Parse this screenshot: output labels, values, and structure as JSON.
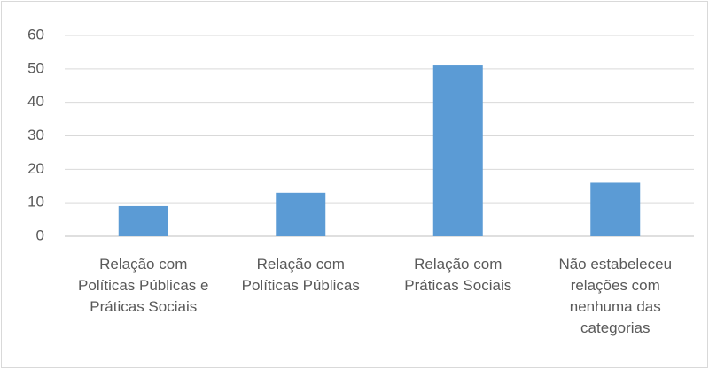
{
  "chart_data": {
    "type": "bar",
    "categories": [
      "Relação com Políticas Públicas e Práticas Sociais",
      "Relação com Políticas Públicas",
      "Relação com Práticas Sociais",
      "Não estabeleceu relações com nenhuma das categorias"
    ],
    "values": [
      9,
      13,
      51,
      16
    ],
    "color": "#5b9bd5",
    "ylim": [
      0,
      60
    ],
    "yticks": [
      0,
      10,
      20,
      30,
      40,
      50,
      60
    ],
    "grid": true
  }
}
